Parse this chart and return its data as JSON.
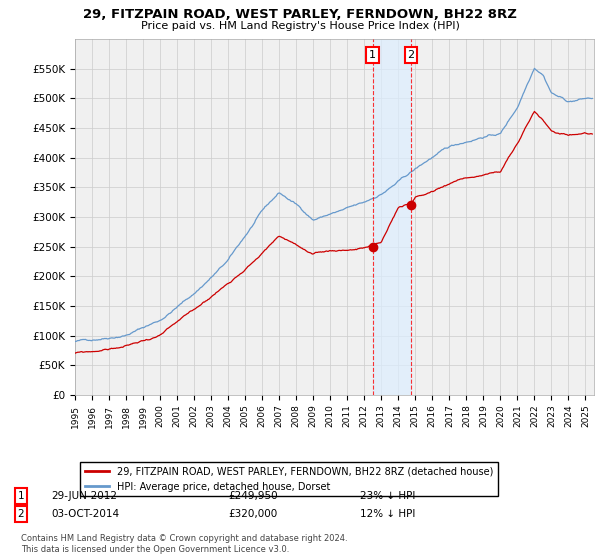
{
  "title": "29, FITZPAIN ROAD, WEST PARLEY, FERNDOWN, BH22 8RZ",
  "subtitle": "Price paid vs. HM Land Registry's House Price Index (HPI)",
  "ylim": [
    0,
    600000
  ],
  "xlim_start": 1995.0,
  "xlim_end": 2025.5,
  "sale1_date": 2012.49,
  "sale1_price": 249950,
  "sale2_date": 2014.75,
  "sale2_price": 320000,
  "legend_property": "29, FITZPAIN ROAD, WEST PARLEY, FERNDOWN, BH22 8RZ (detached house)",
  "legend_hpi": "HPI: Average price, detached house, Dorset",
  "footnote1": "Contains HM Land Registry data © Crown copyright and database right 2024.",
  "footnote2": "This data is licensed under the Open Government Licence v3.0.",
  "property_color": "#cc0000",
  "hpi_color": "#6699cc",
  "shade_color": "#ddeeff",
  "background_color": "#ffffff",
  "grid_color": "#cccccc",
  "plot_bg": "#f0f0f0"
}
